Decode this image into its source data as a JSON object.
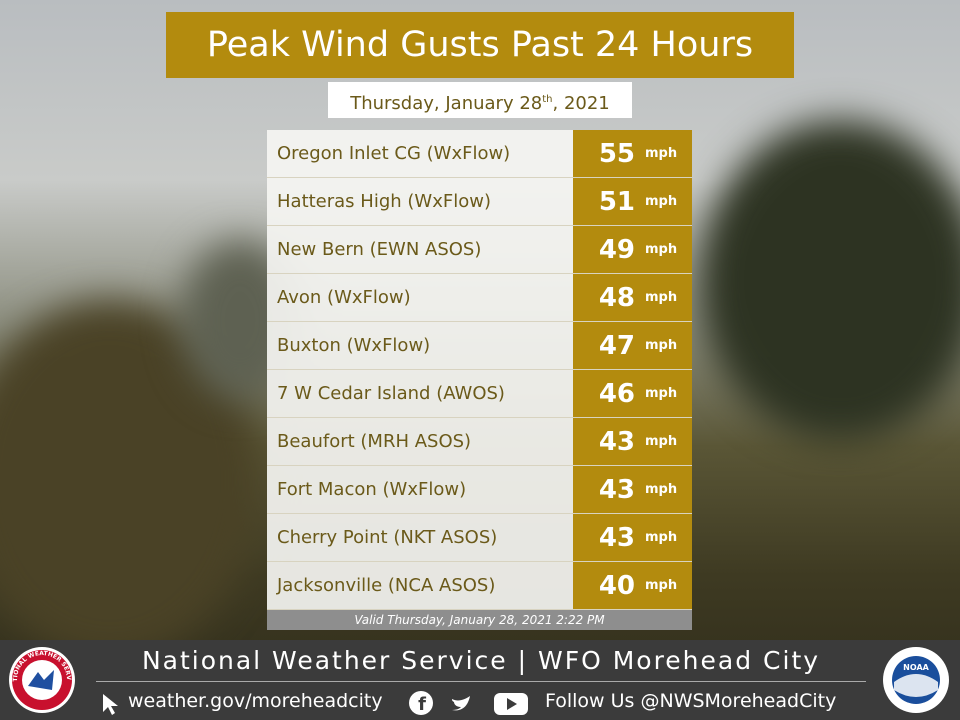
{
  "header": {
    "title": "Peak Wind Gusts Past 24 Hours",
    "date": {
      "main": "Thursday, January 28",
      "suffix": "th",
      "year": ", 2021"
    }
  },
  "table": {
    "rows": [
      {
        "name": "Oregon Inlet CG (WxFlow)",
        "value": 55,
        "unit": "mph"
      },
      {
        "name": "Hatteras High (WxFlow)",
        "value": 51,
        "unit": "mph"
      },
      {
        "name": "New Bern (EWN ASOS)",
        "value": 49,
        "unit": "mph"
      },
      {
        "name": "Avon (WxFlow)",
        "value": 48,
        "unit": "mph"
      },
      {
        "name": "Buxton (WxFlow)",
        "value": 47,
        "unit": "mph"
      },
      {
        "name": "7 W Cedar Island (AWOS)",
        "value": 46,
        "unit": "mph"
      },
      {
        "name": "Beaufort (MRH ASOS)",
        "value": 43,
        "unit": "mph"
      },
      {
        "name": "Fort Macon (WxFlow)",
        "value": 43,
        "unit": "mph"
      },
      {
        "name": "Cherry Point (NKT ASOS)",
        "value": 43,
        "unit": "mph"
      },
      {
        "name": "Jacksonville (NCA ASOS)",
        "value": 40,
        "unit": "mph"
      }
    ],
    "valid": "Valid Thursday, January 28, 2021 2:22 PM"
  },
  "footer": {
    "office": "National Weather Service | WFO Morehead City",
    "website": "weather.gov/moreheadcity",
    "follow": "Follow Us @NWSMoreheadCity",
    "nws_logo": "NATIONAL WEATHER SERVICE",
    "noaa_logo": "NOAA"
  }
}
